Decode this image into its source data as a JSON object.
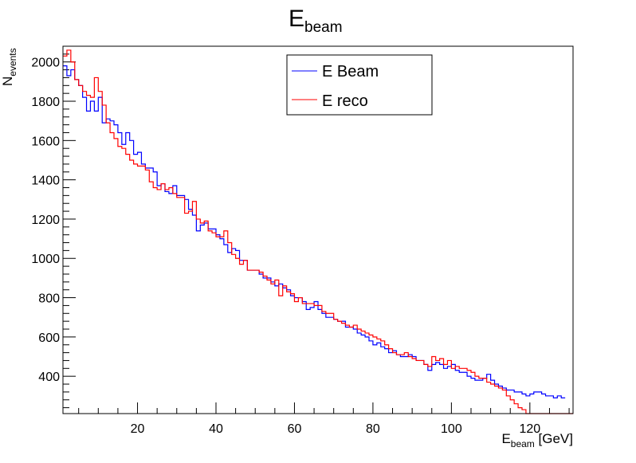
{
  "chart_data": {
    "type": "line",
    "title": "E",
    "title_sub": "beam",
    "xlabel": "E",
    "xlabel_sub": "beam",
    "xlabel_unit": " [GeV]",
    "ylabel": "N",
    "ylabel_sub": "events",
    "xlim": [
      1,
      131
    ],
    "ylim": [
      210,
      2080
    ],
    "x_major_ticks": [
      20,
      40,
      60,
      80,
      100,
      120
    ],
    "y_major_ticks": [
      400,
      600,
      800,
      1000,
      1200,
      1400,
      1600,
      1800,
      2000
    ],
    "grid": false,
    "legend_position": "top-center",
    "bin_start": 1,
    "bin_width": 1,
    "series": [
      {
        "name": "E Beam",
        "color": "#0000ff",
        "values": [
          1980,
          1930,
          1960,
          1910,
          1880,
          1820,
          1750,
          1800,
          1750,
          1820,
          1690,
          1710,
          1700,
          1680,
          1640,
          1580,
          1640,
          1600,
          1530,
          1540,
          1480,
          1460,
          1460,
          1440,
          1370,
          1380,
          1340,
          1330,
          1370,
          1320,
          1320,
          1300,
          1250,
          1220,
          1140,
          1170,
          1180,
          1150,
          1150,
          1120,
          1100,
          1070,
          1030,
          1050,
          1040,
          990,
          990,
          940,
          940,
          940,
          920,
          900,
          900,
          880,
          860,
          870,
          850,
          840,
          810,
          800,
          800,
          780,
          740,
          750,
          780,
          740,
          720,
          700,
          700,
          690,
          680,
          680,
          650,
          650,
          640,
          620,
          610,
          600,
          580,
          560,
          570,
          550,
          540,
          520,
          530,
          510,
          500,
          500,
          510,
          500,
          480,
          480,
          460,
          430,
          460,
          470,
          460,
          440,
          450,
          460,
          430,
          420,
          420,
          400,
          390,
          380,
          380,
          390,
          410,
          380,
          360,
          350,
          340,
          330,
          330,
          320,
          320,
          310,
          300,
          310,
          320,
          320,
          310,
          300,
          300,
          290,
          300,
          290
        ]
      },
      {
        "name": "E reco",
        "color": "#ff0000",
        "values": [
          2030,
          2060,
          2000,
          1910,
          1880,
          1850,
          1830,
          1820,
          1920,
          1850,
          1780,
          1690,
          1640,
          1610,
          1570,
          1560,
          1530,
          1500,
          1480,
          1470,
          1470,
          1450,
          1390,
          1360,
          1350,
          1380,
          1350,
          1360,
          1330,
          1310,
          1310,
          1230,
          1240,
          1290,
          1200,
          1180,
          1190,
          1140,
          1130,
          1110,
          1110,
          1140,
          1080,
          1020,
          1000,
          970,
          990,
          940,
          940,
          940,
          930,
          910,
          890,
          870,
          890,
          810,
          860,
          830,
          820,
          780,
          800,
          770,
          770,
          770,
          760,
          760,
          730,
          720,
          720,
          690,
          680,
          670,
          660,
          650,
          660,
          640,
          630,
          620,
          610,
          600,
          590,
          580,
          560,
          540,
          520,
          510,
          510,
          520,
          500,
          490,
          480,
          480,
          460,
          450,
          500,
          480,
          490,
          460,
          480,
          440,
          450,
          440,
          440,
          430,
          420,
          400,
          390,
          390,
          370,
          360,
          350,
          340,
          330,
          300,
          280,
          260,
          240,
          230,
          210,
          210,
          210,
          210,
          210,
          210,
          210,
          210,
          210,
          210,
          210,
          210
        ]
      }
    ]
  }
}
